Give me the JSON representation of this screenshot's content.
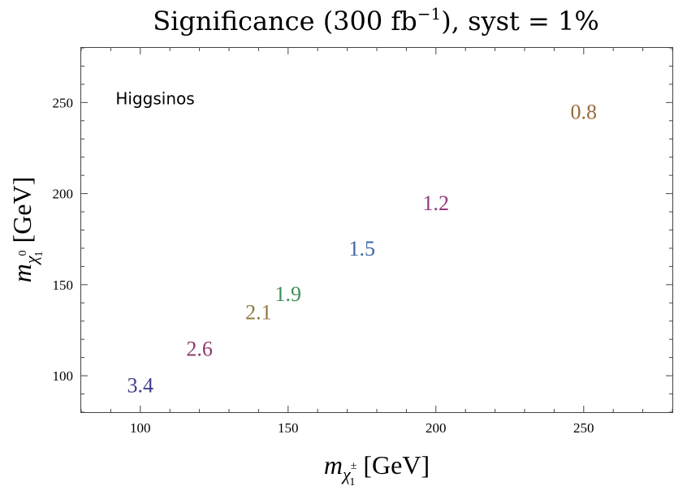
{
  "chart_data": {
    "type": "scatter",
    "title": {
      "pre": "Significance (300 fb",
      "sup": "−1",
      "post": "), syst = 1%"
    },
    "xlabel": {
      "var": "m",
      "sub": "χ",
      "subsub": "1",
      "subsup": "±",
      "unit": "[GeV]"
    },
    "ylabel": {
      "var": "m",
      "sub": "χ",
      "subsub": "1",
      "subsup": "0",
      "unit": "[GeV]"
    },
    "xlim": [
      80,
      280
    ],
    "ylim": [
      80,
      280
    ],
    "xticks_major": [
      100,
      150,
      200,
      250
    ],
    "yticks_major": [
      100,
      150,
      200,
      250
    ],
    "annotation": {
      "text": "Higgsinos",
      "x": 90,
      "y": 250
    },
    "points": [
      {
        "x": 100,
        "y": 95,
        "label": "3.4",
        "color": "#3f3f8f"
      },
      {
        "x": 120,
        "y": 115,
        "label": "2.6",
        "color": "#8f3a6e"
      },
      {
        "x": 140,
        "y": 135,
        "label": "2.1",
        "color": "#8f7b3f"
      },
      {
        "x": 150,
        "y": 145,
        "label": "1.9",
        "color": "#3d8f55"
      },
      {
        "x": 175,
        "y": 170,
        "label": "1.5",
        "color": "#3f63a1"
      },
      {
        "x": 200,
        "y": 195,
        "label": "1.2",
        "color": "#8f3a7e"
      },
      {
        "x": 250,
        "y": 245,
        "label": "0.8",
        "color": "#9a6a3a"
      }
    ]
  }
}
